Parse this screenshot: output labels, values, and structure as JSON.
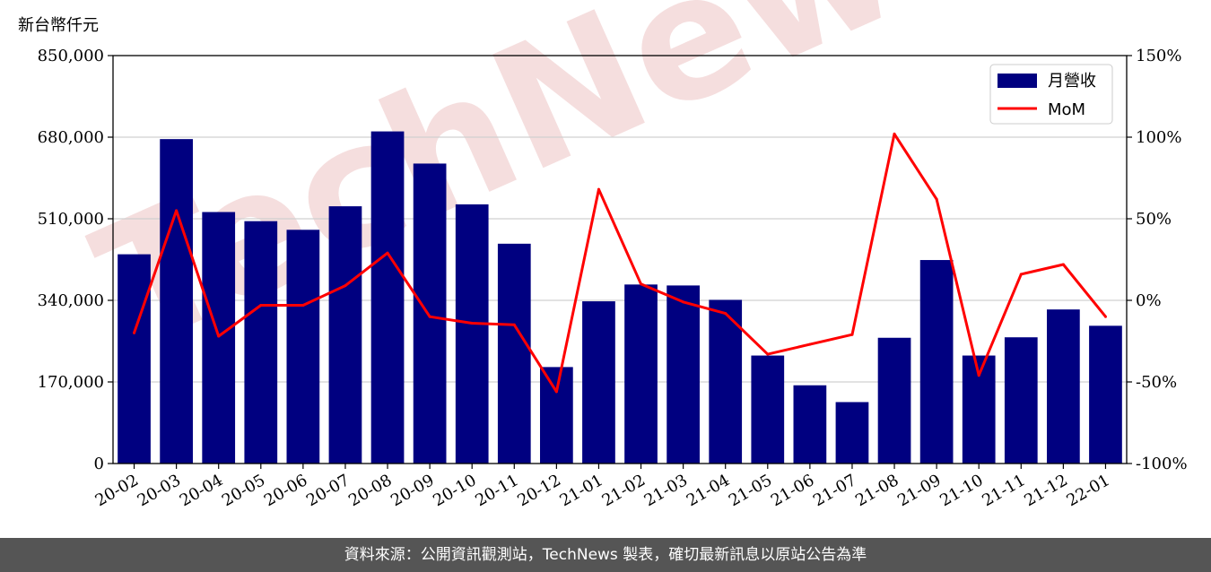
{
  "unit_label": "新台幣仟元",
  "footer_text": "資料來源：公開資訊觀測站，TechNews 製表，確切最新訊息以原站公告為準",
  "watermark_text": "TechNews",
  "colors": {
    "bar": "#000080",
    "line": "#ff0000",
    "grid": "#d0d0d0",
    "watermark": "#f5dede",
    "footer_bg": "#555555"
  },
  "chart_data": {
    "type": "bar",
    "categories": [
      "20-02",
      "20-03",
      "20-04",
      "20-05",
      "20-06",
      "20-07",
      "20-08",
      "20-09",
      "20-10",
      "20-11",
      "20-12",
      "21-01",
      "21-02",
      "21-03",
      "21-04",
      "21-05",
      "21-06",
      "21-07",
      "21-08",
      "21-09",
      "21-10",
      "21-11",
      "21-12",
      "22-01"
    ],
    "series": [
      {
        "name": "月營收",
        "type": "bar",
        "axis": "left",
        "values": [
          436000,
          676000,
          524000,
          505000,
          487000,
          536000,
          692000,
          625000,
          540000,
          458000,
          201000,
          338000,
          373000,
          371000,
          341000,
          225000,
          163000,
          128000,
          262000,
          424000,
          225000,
          263000,
          321000,
          287000
        ]
      },
      {
        "name": "MoM",
        "type": "line",
        "axis": "right",
        "values": [
          -20,
          55,
          -22,
          -3,
          -3,
          9,
          29,
          -10,
          -14,
          -15,
          -56,
          68,
          10,
          -1,
          -8,
          -33,
          -27,
          -21,
          102,
          62,
          -46,
          16,
          22,
          -10
        ]
      }
    ],
    "y_left": {
      "lim": [
        0,
        850000
      ],
      "ticks": [
        0,
        170000,
        340000,
        510000,
        680000,
        850000
      ],
      "tick_labels": [
        "0",
        "170,000",
        "340,000",
        "510,000",
        "680,000",
        "850,000"
      ]
    },
    "y_right": {
      "lim": [
        -100,
        150
      ],
      "ticks": [
        -100,
        -50,
        0,
        50,
        100,
        150
      ],
      "tick_labels": [
        "-100%",
        "-50%",
        "0%",
        "50%",
        "100%",
        "150%"
      ]
    },
    "grid": true,
    "legend": "top-right"
  }
}
